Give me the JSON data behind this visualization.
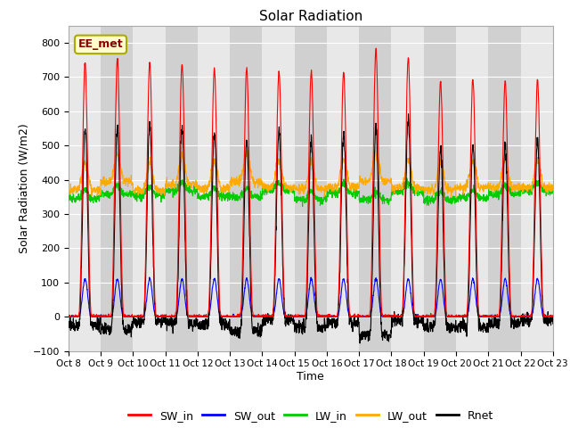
{
  "title": "Solar Radiation",
  "xlabel": "Time",
  "ylabel": "Solar Radiation (W/m2)",
  "ylim": [
    -100,
    850
  ],
  "yticks": [
    -100,
    0,
    100,
    200,
    300,
    400,
    500,
    600,
    700,
    800
  ],
  "n_days": 15,
  "annotation_text": "EE_met",
  "series_colors": {
    "SW_in": "#ff0000",
    "SW_out": "#0000ff",
    "LW_in": "#00cc00",
    "LW_out": "#ffaa00",
    "Rnet": "#000000"
  },
  "bg_color_light": "#e8e8e8",
  "bg_color_dark": "#d0d0d0",
  "tick_labels": [
    "Oct 8",
    "Oct 9",
    "Oct 10",
    "Oct 11",
    "Oct 12",
    "Oct 13",
    "Oct 14",
    "Oct 15",
    "Oct 16",
    "Oct 17",
    "Oct 18",
    "Oct 19",
    "Oct 20",
    "Oct 21",
    "Oct 22",
    "Oct 23"
  ]
}
